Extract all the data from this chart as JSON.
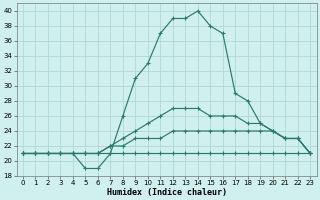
{
  "xlabel": "Humidex (Indice chaleur)",
  "background_color": "#cff0ee",
  "grid_color": "#b0d8d4",
  "line_color": "#2a7a6a",
  "xlim": [
    -0.5,
    23.5
  ],
  "ylim": [
    18,
    41
  ],
  "xticks": [
    0,
    1,
    2,
    3,
    4,
    5,
    6,
    7,
    8,
    9,
    10,
    11,
    12,
    13,
    14,
    15,
    16,
    17,
    18,
    19,
    20,
    21,
    22,
    23
  ],
  "yticks": [
    18,
    20,
    22,
    24,
    26,
    28,
    30,
    32,
    34,
    36,
    38,
    40
  ],
  "line1_y": [
    21,
    21,
    21,
    21,
    21,
    19,
    19,
    21,
    26,
    31,
    33,
    37,
    39,
    39,
    40,
    38,
    37,
    29,
    28,
    25,
    24,
    23,
    23,
    21
  ],
  "line2_y": [
    21,
    21,
    21,
    21,
    21,
    21,
    21,
    21,
    21,
    21,
    21,
    21,
    21,
    21,
    21,
    21,
    21,
    21,
    21,
    21,
    21,
    21,
    21,
    21
  ],
  "line3_y": [
    21,
    21,
    21,
    21,
    21,
    21,
    21,
    22,
    22,
    23,
    23,
    23,
    24,
    24,
    24,
    24,
    24,
    24,
    24,
    24,
    24,
    23,
    23,
    21
  ],
  "line4_y": [
    21,
    21,
    21,
    21,
    21,
    21,
    21,
    22,
    23,
    24,
    25,
    26,
    27,
    27,
    27,
    26,
    26,
    26,
    25,
    25,
    24,
    23,
    23,
    21
  ]
}
